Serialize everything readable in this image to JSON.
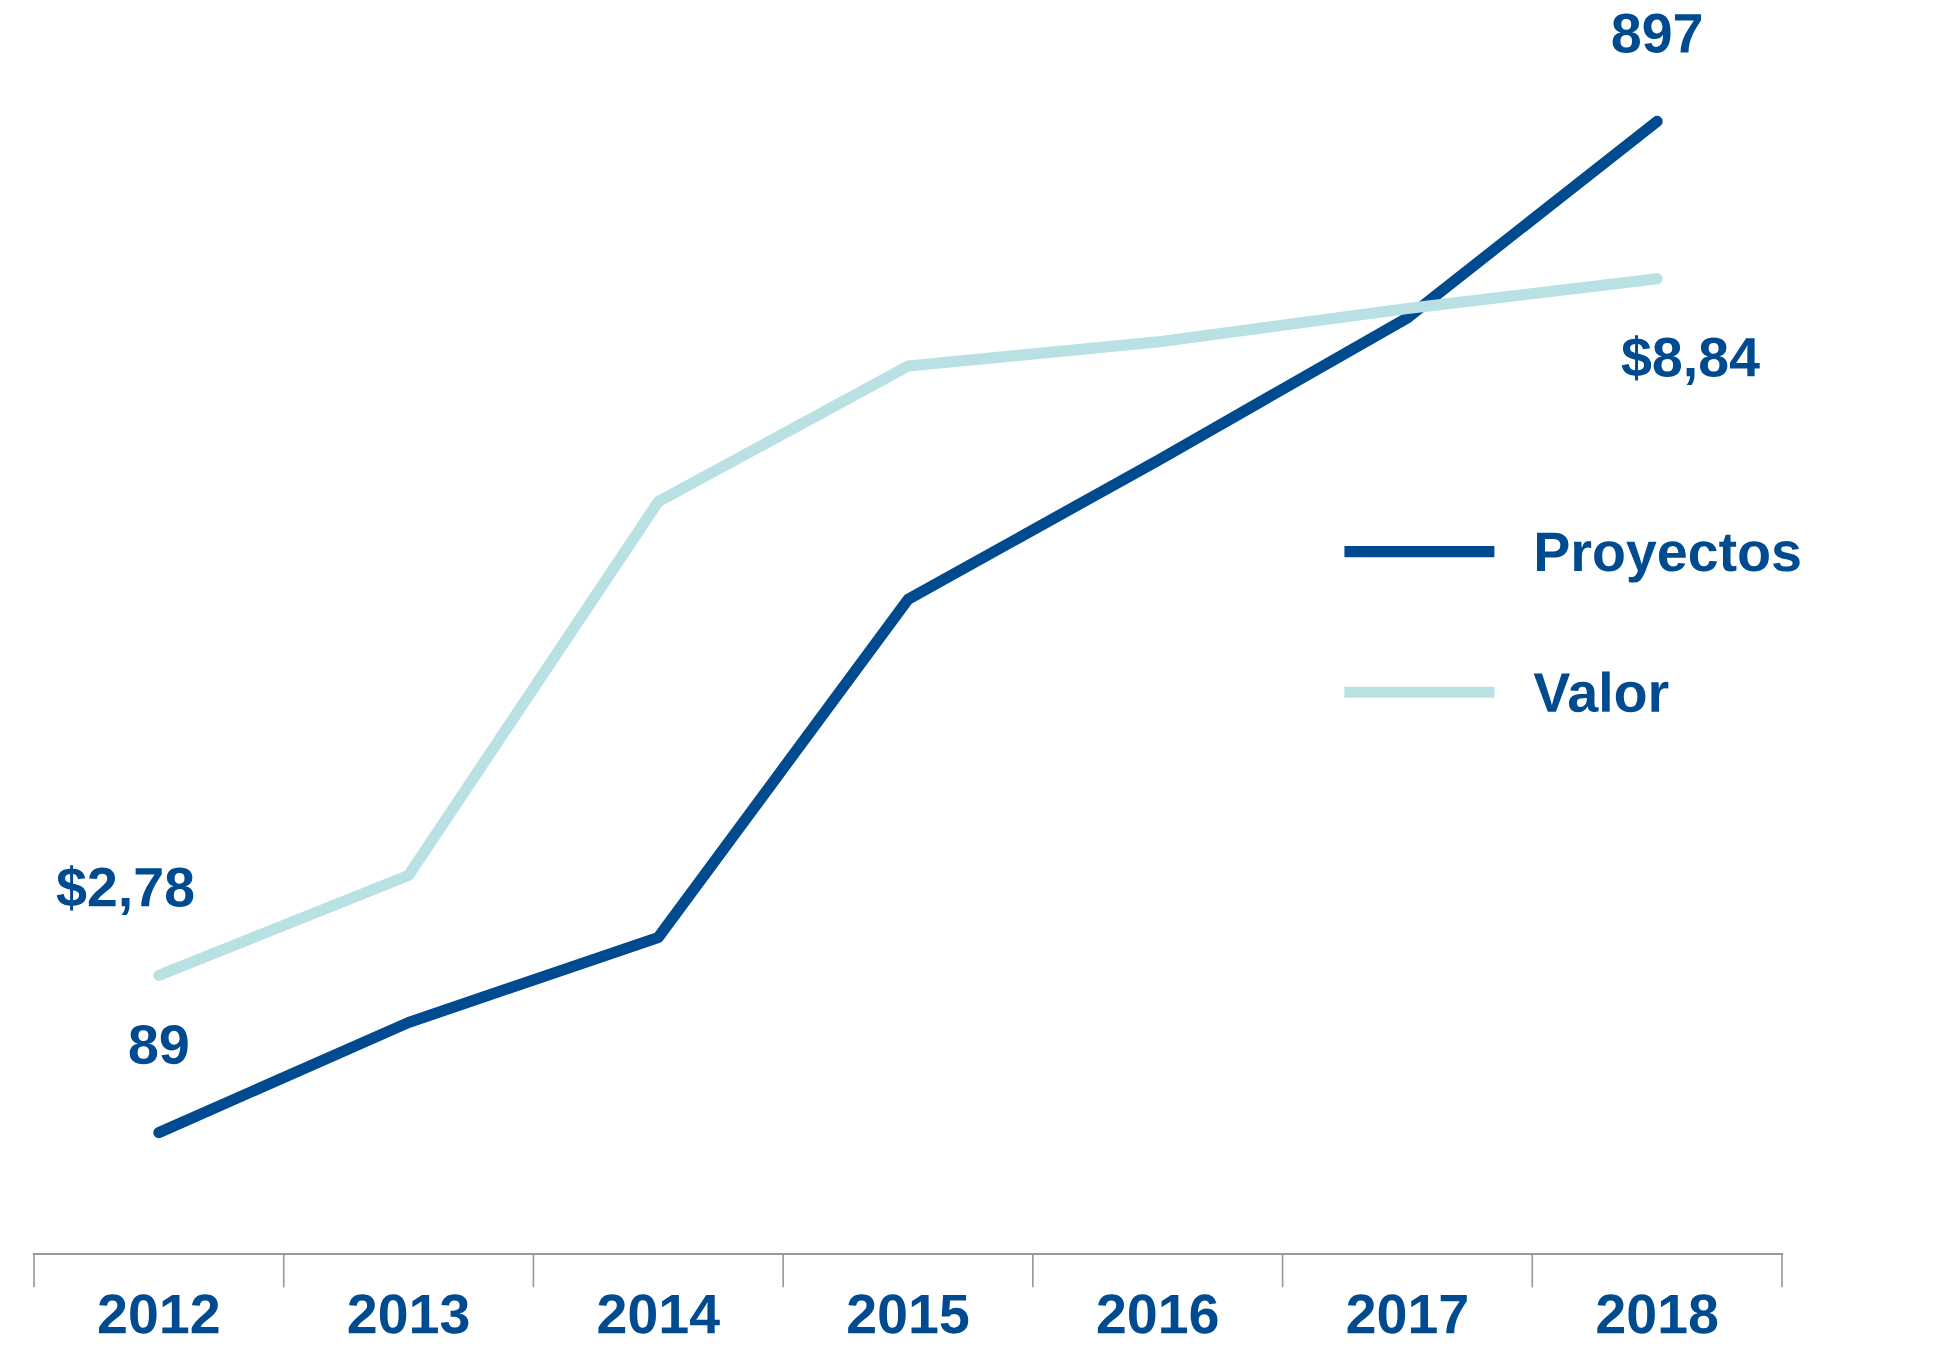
{
  "chart_data": {
    "type": "line",
    "categories": [
      "2012",
      "2013",
      "2014",
      "2015",
      "2016",
      "2017",
      "2018"
    ],
    "series": [
      {
        "name": "Proyectos",
        "color": "#004a8f",
        "values": [
          89,
          177,
          245,
          515,
          626,
          740,
          897
        ],
        "value_labels": [
          "89",
          null,
          null,
          null,
          null,
          null,
          "897"
        ]
      },
      {
        "name": "Valor",
        "color": "#b9e0e3",
        "axis": "y2",
        "values": [
          2.78,
          3.65,
          6.9,
          8.08,
          8.29,
          8.58,
          8.84
        ],
        "value_labels": [
          "$2,78",
          null,
          null,
          null,
          null,
          null,
          "$8,84"
        ]
      }
    ],
    "tick_labels": "x",
    "legend": "right",
    "grid": false,
    "marker": "none",
    "line_style": "solid"
  }
}
